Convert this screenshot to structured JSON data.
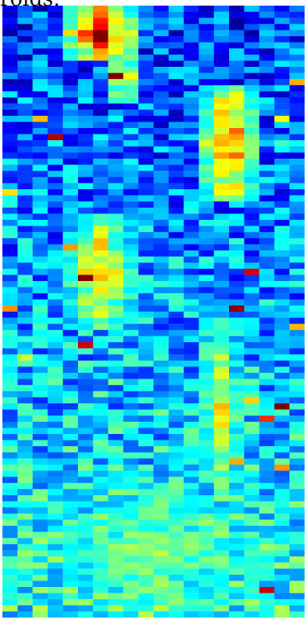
{
  "caption_fragment": "rolds.",
  "chart_data": {
    "type": "heatmap",
    "title": "",
    "xlabel": "",
    "ylabel": "",
    "rows": 100,
    "cols": 20,
    "color_scale": "jet",
    "value_range": [
      0,
      1
    ],
    "grid": false,
    "legend": "none",
    "seed": 7,
    "high_activity_regions": [
      {
        "row_start": 0,
        "row_end": 8,
        "col_start": 4,
        "col_end": 8,
        "peak": 0.96
      },
      {
        "row_start": 7,
        "row_end": 15,
        "col_start": 7,
        "col_end": 8,
        "peak": 0.78
      },
      {
        "row_start": 13,
        "row_end": 31,
        "col_start": 13,
        "col_end": 16,
        "peak": 0.88
      },
      {
        "row_start": 34,
        "row_end": 52,
        "col_start": 4,
        "col_end": 8,
        "peak": 0.76
      },
      {
        "row_start": 53,
        "row_end": 78,
        "col_start": 13,
        "col_end": 15,
        "peak": 0.67
      },
      {
        "row_start": 78,
        "row_end": 99,
        "col_start": 0,
        "col_end": 19,
        "peak": 0.56
      }
    ]
  },
  "colors": {
    "deep_blue": "#00008f",
    "blue": "#0000ff",
    "cyan": "#00ffff",
    "yellow": "#ffff00",
    "red": "#ff0000"
  }
}
